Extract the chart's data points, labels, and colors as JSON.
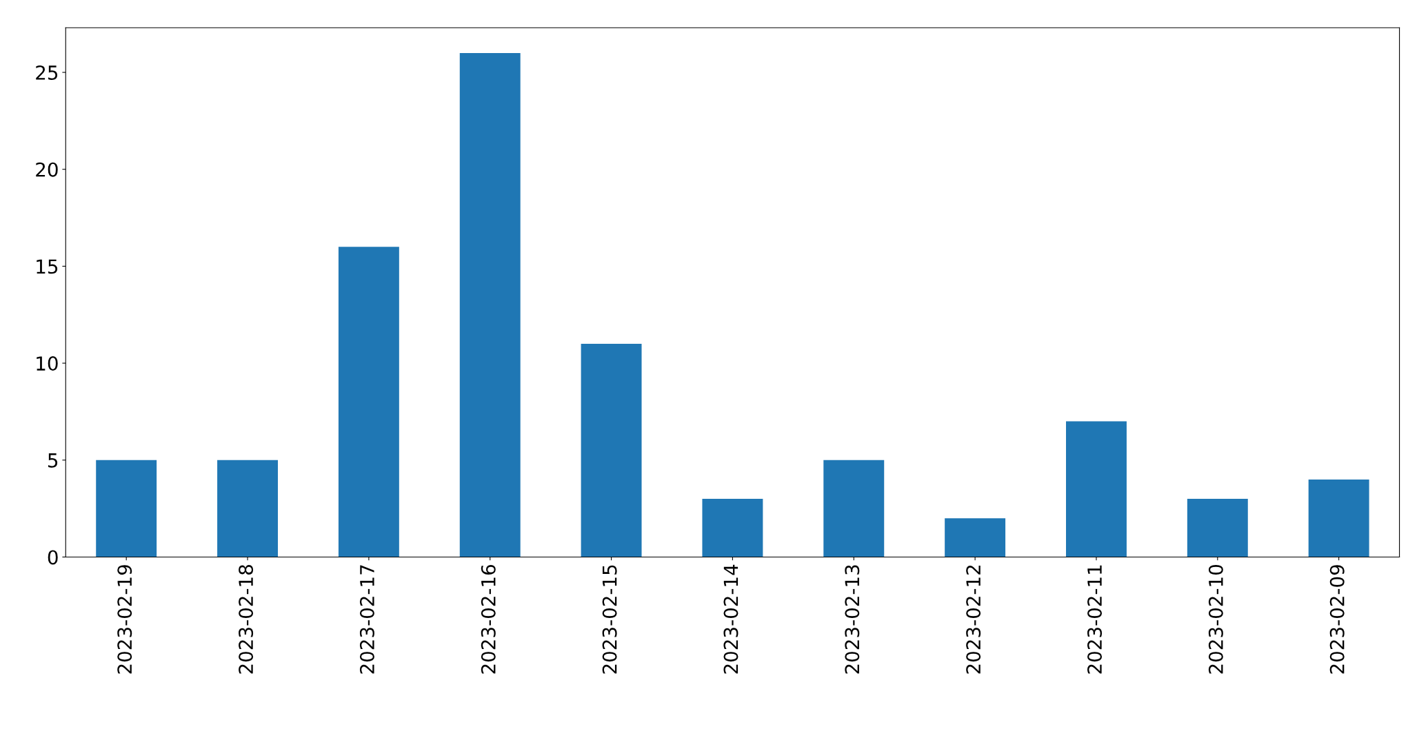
{
  "chart_data": {
    "type": "bar",
    "categories": [
      "2023-02-19",
      "2023-02-18",
      "2023-02-17",
      "2023-02-16",
      "2023-02-15",
      "2023-02-14",
      "2023-02-13",
      "2023-02-12",
      "2023-02-11",
      "2023-02-10",
      "2023-02-09"
    ],
    "values": [
      5,
      5,
      16,
      26,
      11,
      3,
      5,
      2,
      7,
      3,
      4
    ],
    "color": "#1f77b4",
    "ylim": [
      0,
      27.3
    ],
    "yticks": [
      0,
      5,
      10,
      15,
      20,
      25
    ],
    "grid": false,
    "legend": false
  }
}
